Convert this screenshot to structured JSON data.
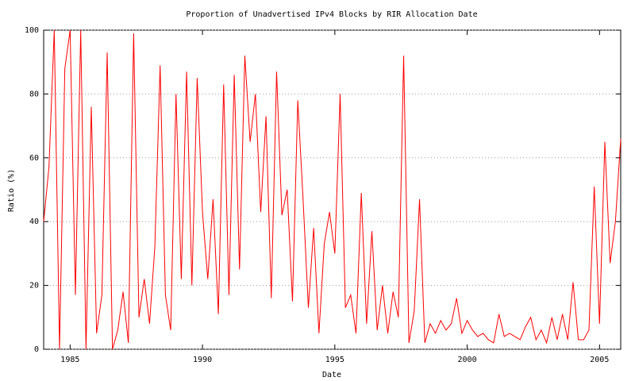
{
  "chart_data": {
    "type": "line",
    "title": "Proportion of Unadvertised IPv4 Blocks by RIR Allocation Date",
    "x_label": "Date",
    "y_label": "Ratio (%)",
    "x": [
      1984.0,
      1984.2,
      1984.4,
      1984.6,
      1984.8,
      1985.0,
      1985.2,
      1985.4,
      1985.6,
      1985.8,
      1986.0,
      1986.2,
      1986.4,
      1986.6,
      1986.8,
      1987.0,
      1987.2,
      1987.4,
      1987.6,
      1987.8,
      1988.0,
      1988.2,
      1988.4,
      1988.6,
      1988.8,
      1989.0,
      1989.2,
      1989.4,
      1989.6,
      1989.8,
      1990.0,
      1990.2,
      1990.4,
      1990.6,
      1990.8,
      1991.0,
      1991.2,
      1991.4,
      1991.6,
      1991.8,
      1992.0,
      1992.2,
      1992.4,
      1992.6,
      1992.8,
      1993.0,
      1993.2,
      1993.4,
      1993.6,
      1993.8,
      1994.0,
      1994.2,
      1994.4,
      1994.6,
      1994.8,
      1995.0,
      1995.2,
      1995.4,
      1995.6,
      1995.8,
      1996.0,
      1996.2,
      1996.4,
      1996.6,
      1996.8,
      1997.0,
      1997.2,
      1997.4,
      1997.6,
      1997.8,
      1998.0,
      1998.2,
      1998.4,
      1998.6,
      1998.8,
      1999.0,
      1999.2,
      1999.4,
      1999.6,
      1999.8,
      2000.0,
      2000.2,
      2000.4,
      2000.6,
      2000.8,
      2001.0,
      2001.2,
      2001.4,
      2001.6,
      2001.8,
      2002.0,
      2002.2,
      2002.4,
      2002.6,
      2002.8,
      2003.0,
      2003.2,
      2003.4,
      2003.6,
      2003.8,
      2004.0,
      2004.2,
      2004.4,
      2004.6,
      2004.8,
      2005.0,
      2005.2,
      2005.4,
      2005.6,
      2005.8
    ],
    "values": [
      40,
      57,
      100,
      0,
      88,
      100,
      17,
      100,
      0,
      76,
      5,
      17,
      93,
      0,
      6,
      18,
      2,
      99,
      10,
      22,
      8,
      32,
      89,
      17,
      6,
      80,
      22,
      87,
      20,
      85,
      43,
      22,
      47,
      11,
      83,
      17,
      86,
      25,
      92,
      65,
      80,
      43,
      73,
      16,
      87,
      42,
      50,
      15,
      78,
      47,
      13,
      38,
      5,
      33,
      43,
      30,
      80,
      13,
      17,
      5,
      49,
      8,
      37,
      6,
      20,
      5,
      18,
      10,
      92,
      2,
      12,
      47,
      2,
      8,
      5,
      9,
      6,
      8,
      16,
      5,
      9,
      6,
      4,
      5,
      3,
      2,
      11,
      4,
      5,
      4,
      3,
      7,
      10,
      3,
      6,
      2,
      10,
      3,
      11,
      3,
      21,
      3,
      3,
      6,
      51,
      8,
      65,
      27,
      40,
      66
    ],
    "color": "#ff0000",
    "xlim": [
      1984,
      2005.8
    ],
    "xticks": [
      1985,
      1990,
      1995,
      2000,
      2005
    ],
    "ylim": [
      0,
      100
    ],
    "yticks": [
      0,
      20,
      40,
      60,
      80,
      100
    ],
    "grid": true
  }
}
